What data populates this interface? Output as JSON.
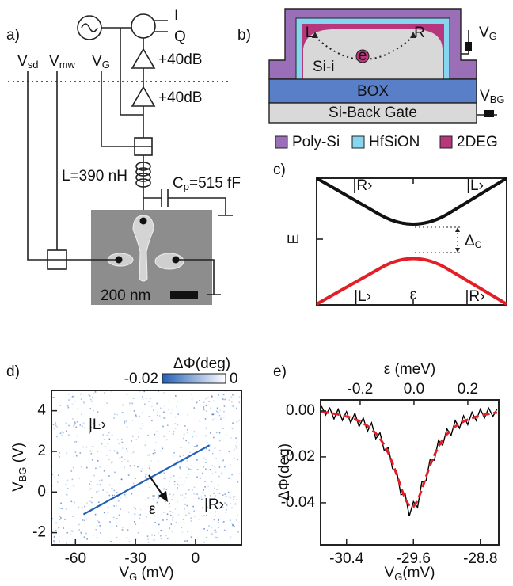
{
  "panel_a": {
    "label": "a)",
    "source_I": "I",
    "source_Q": "Q",
    "amp1": "+40dB",
    "amp2": "+40dB",
    "vsd": {
      "main": "V",
      "sub": "sd"
    },
    "vmw": {
      "main": "V",
      "sub": "mw"
    },
    "vg": {
      "main": "V",
      "sub": "G"
    },
    "inductor": "L=390 nH",
    "capacitor": {
      "main": "C",
      "sub": "p",
      "rest": "=515 fF"
    },
    "scale_bar": "200 nm"
  },
  "panel_b": {
    "label": "b)",
    "left": "L",
    "right": "R",
    "electron": "e",
    "channel": "Si-i",
    "box": "BOX",
    "back_gate": "Si-Back Gate",
    "vg": {
      "main": "V",
      "sub": "G"
    },
    "vbg": {
      "main": "V",
      "sub": "BG"
    },
    "legend": [
      {
        "name": "Poly-Si",
        "color": "#9b6fb8"
      },
      {
        "name": "HfSiON",
        "color": "#86d6f0"
      },
      {
        "name": "2DEG",
        "color": "#b8377c"
      }
    ]
  },
  "panel_c": {
    "label": "c)",
    "axis": "E",
    "upper_left": "|R›",
    "upper_right": "|L›",
    "lower_left": "|L›",
    "lower_right": "|R›",
    "x_label": "ε",
    "gap": {
      "main": "Δ",
      "sub": "C"
    }
  },
  "chart_data": [
    {
      "type": "heatmap",
      "label": "d)",
      "xlabel": {
        "main": "V",
        "sub": "G",
        "rest": " (mV)"
      },
      "ylabel": {
        "main": "V",
        "sub": "BG",
        "rest": " (V)"
      },
      "xlim": [
        -72,
        23
      ],
      "xticks": [
        -60,
        -30,
        0
      ],
      "ylim": [
        -2.6,
        5
      ],
      "yticks": [
        -2,
        0,
        2,
        4
      ],
      "colorbar": {
        "label": "ΔΦ(deg)",
        "lim": [
          -0.02,
          0
        ],
        "ticks": [
          -0.02,
          0
        ],
        "colors": [
          "#2360b8",
          "#ffffff"
        ]
      },
      "feature": {
        "x": [
          -56,
          7
        ],
        "y": [
          -1.1,
          2.3
        ]
      },
      "annotations": [
        "|L›",
        "|R›",
        "ε"
      ]
    },
    {
      "type": "line",
      "label": "e)",
      "xlabel": {
        "main": "V",
        "sub": "G",
        "rest": "(mV)"
      },
      "ylabel": "ΔΦ(deg)",
      "x2label": "ε (meV)",
      "xlim": [
        -30.71,
        -28.58
      ],
      "xticks": [
        -30.4,
        -29.6,
        -28.8
      ],
      "x2lim": [
        -0.347,
        0.315
      ],
      "x2ticks": [
        -0.2,
        {
          "value": 0,
          "label": "0.0"
        },
        0.2
      ],
      "ylim": [
        -0.0583,
        0.0048
      ],
      "yticks": [
        {
          "value": 0,
          "label": "0.00"
        },
        {
          "value": -0.02,
          "label": "-0.02"
        },
        {
          "value": -0.04,
          "label": "-0.04"
        }
      ],
      "x": [
        -30.7,
        -30.65,
        -30.6,
        -30.55,
        -30.5,
        -30.45,
        -30.4,
        -30.35,
        -30.3,
        -30.25,
        -30.2,
        -30.15,
        -30.1,
        -30.05,
        -30.0,
        -29.95,
        -29.9,
        -29.85,
        -29.8,
        -29.75,
        -29.7,
        -29.65,
        -29.6,
        -29.55,
        -29.5,
        -29.45,
        -29.4,
        -29.35,
        -29.3,
        -29.25,
        -29.2,
        -29.15,
        -29.1,
        -29.05,
        -29.0,
        -28.95,
        -28.9,
        -28.85,
        -28.8,
        -28.75,
        -28.7,
        -28.65,
        -28.6
      ],
      "series": [
        {
          "color": "#000000",
          "values": [
            0.0021,
            -0.0018,
            0.0012,
            -0.0035,
            0.0008,
            -0.0041,
            -0.0003,
            -0.0052,
            -0.001,
            -0.0068,
            -0.0031,
            -0.0089,
            -0.0052,
            -0.0121,
            -0.0095,
            -0.0172,
            -0.016,
            -0.0251,
            -0.0262,
            -0.0365,
            -0.036,
            -0.0458,
            -0.0395,
            -0.042,
            -0.031,
            -0.0305,
            -0.021,
            -0.0215,
            -0.0128,
            -0.015,
            -0.0078,
            -0.0106,
            -0.0042,
            -0.0075,
            -0.0021,
            -0.006,
            -0.0005,
            -0.0042,
            0.0008,
            -0.0031,
            0.0012,
            -0.0024,
            0.0009
          ]
        },
        {
          "color": "#e41e26",
          "dashed": true,
          "values": [
            -0.0004,
            -0.0006,
            -0.0009,
            -0.0012,
            -0.0015,
            -0.002,
            -0.0024,
            -0.0029,
            -0.0036,
            -0.0044,
            -0.0054,
            -0.0065,
            -0.008,
            -0.0098,
            -0.012,
            -0.0149,
            -0.0184,
            -0.0227,
            -0.0277,
            -0.0332,
            -0.0382,
            -0.0414,
            -0.0417,
            -0.039,
            -0.0343,
            -0.0288,
            -0.0236,
            -0.0192,
            -0.0155,
            -0.0125,
            -0.0102,
            -0.0083,
            -0.0068,
            -0.0056,
            -0.0046,
            -0.0038,
            -0.0031,
            -0.0025,
            -0.002,
            -0.0016,
            -0.0013,
            -0.0009,
            -0.0007
          ]
        }
      ]
    }
  ]
}
